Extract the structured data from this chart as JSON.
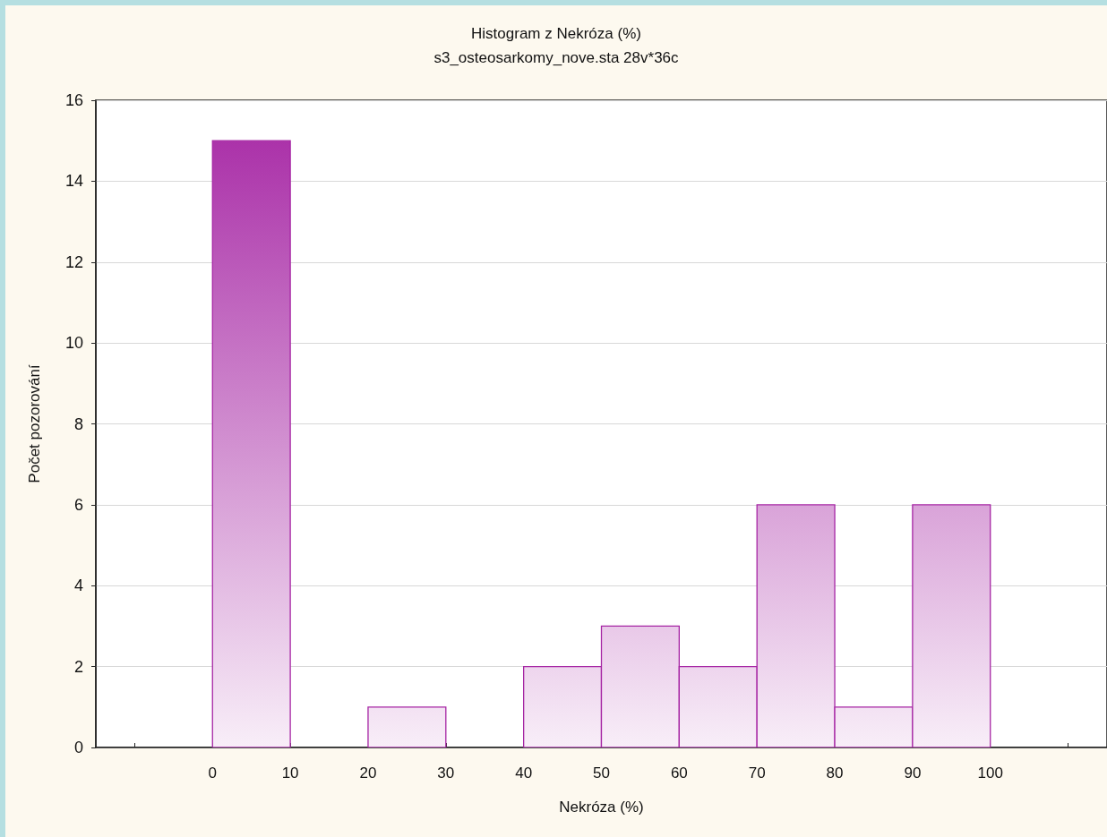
{
  "chart_data": {
    "type": "histogram",
    "title": "Histogram z Nekróza (%)",
    "subtitle": "s3_osteosarkomy_nove.sta 28v*36c",
    "xlabel": "Nekróza (%)",
    "ylabel": "Počet pozorování",
    "bins": [
      0,
      10,
      20,
      30,
      40,
      50,
      60,
      70,
      80,
      90,
      100
    ],
    "values": [
      15,
      0,
      1,
      0,
      2,
      3,
      2,
      6,
      1,
      6
    ],
    "color": "#a626a4",
    "xlim": [
      -15,
      115
    ],
    "xticks": [
      {
        "value": -10,
        "label": null
      },
      0,
      10,
      20,
      30,
      40,
      50,
      60,
      70,
      80,
      90,
      100,
      {
        "value": 110,
        "label": null
      }
    ],
    "ylim": [
      0,
      16
    ],
    "yticks": [
      0,
      2,
      4,
      6,
      8,
      10,
      12,
      14,
      16
    ],
    "grid": "y"
  }
}
